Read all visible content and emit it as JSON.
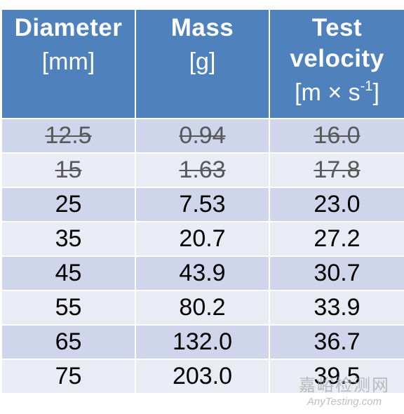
{
  "table": {
    "headers": [
      {
        "title": "Diameter",
        "unit": "[mm]"
      },
      {
        "title": "Mass",
        "unit": "[g]"
      },
      {
        "title": "Test velocity",
        "unit_prefix": "[m × s",
        "unit_sup": "-1",
        "unit_suffix": "]"
      }
    ],
    "rows": [
      {
        "diameter": "12.5",
        "mass": "0.94",
        "velocity": "16.0",
        "struck": true
      },
      {
        "diameter": "15",
        "mass": "1.63",
        "velocity": "17.8",
        "struck": true
      },
      {
        "diameter": "25",
        "mass": "7.53",
        "velocity": "23.0",
        "struck": false
      },
      {
        "diameter": "35",
        "mass": "20.7",
        "velocity": "27.2",
        "struck": false
      },
      {
        "diameter": "45",
        "mass": "43.9",
        "velocity": "30.7",
        "struck": false
      },
      {
        "diameter": "55",
        "mass": "80.2",
        "velocity": "33.9",
        "struck": false
      },
      {
        "diameter": "65",
        "mass": "132.0",
        "velocity": "36.7",
        "struck": false
      },
      {
        "diameter": "75",
        "mass": "203.0",
        "velocity": "39.5",
        "struck": false
      }
    ]
  },
  "watermark": {
    "cn": "嘉峪检测网",
    "en": "AnyTesting.com"
  },
  "colors": {
    "header_bg": "#4f81bd",
    "row_odd": "#cfd5ea",
    "row_even": "#e9ebf5"
  }
}
